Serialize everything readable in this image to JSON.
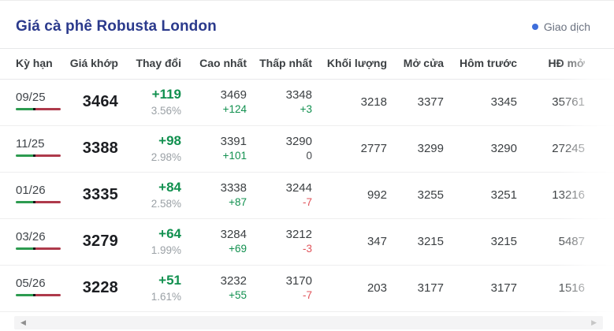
{
  "header": {
    "title": "Giá cà phê Robusta London",
    "legend": {
      "label": "Giao dịch"
    }
  },
  "table": {
    "columns": [
      "Kỳ hạn",
      "Giá khớp",
      "Thay đổi",
      "Cao nhất",
      "Thấp nhất",
      "Khối lượng",
      "Mở cửa",
      "Hôm trước",
      "HĐ mở"
    ],
    "rows": [
      {
        "term": "09/25",
        "match_price": "3464",
        "change": "+119",
        "change_pct": "3.56%",
        "high": "3469",
        "high_delta": "+124",
        "high_delta_dir": "up",
        "low": "3348",
        "low_delta": "+3",
        "low_delta_dir": "up",
        "volume": "3218",
        "open": "3377",
        "prev": "3345",
        "open_interest": "35761"
      },
      {
        "term": "11/25",
        "match_price": "3388",
        "change": "+98",
        "change_pct": "2.98%",
        "high": "3391",
        "high_delta": "+101",
        "high_delta_dir": "up",
        "low": "3290",
        "low_delta": "0",
        "low_delta_dir": "flat",
        "volume": "2777",
        "open": "3299",
        "prev": "3290",
        "open_interest": "27245"
      },
      {
        "term": "01/26",
        "match_price": "3335",
        "change": "+84",
        "change_pct": "2.58%",
        "high": "3338",
        "high_delta": "+87",
        "high_delta_dir": "up",
        "low": "3244",
        "low_delta": "-7",
        "low_delta_dir": "down",
        "volume": "992",
        "open": "3255",
        "prev": "3251",
        "open_interest": "13216"
      },
      {
        "term": "03/26",
        "match_price": "3279",
        "change": "+64",
        "change_pct": "1.99%",
        "high": "3284",
        "high_delta": "+69",
        "high_delta_dir": "up",
        "low": "3212",
        "low_delta": "-3",
        "low_delta_dir": "down",
        "volume": "347",
        "open": "3215",
        "prev": "3215",
        "open_interest": "5487"
      },
      {
        "term": "05/26",
        "match_price": "3228",
        "change": "+51",
        "change_pct": "1.61%",
        "high": "3232",
        "high_delta": "+55",
        "high_delta_dir": "up",
        "low": "3170",
        "low_delta": "-7",
        "low_delta_dir": "down",
        "volume": "203",
        "open": "3177",
        "prev": "3177",
        "open_interest": "1516"
      }
    ]
  },
  "scrollbar": {
    "left_arrow": "◀",
    "right_arrow": "▶"
  },
  "colors": {
    "title": "#2b3a8c",
    "legend_dot": "#3e6edb",
    "up": "#11904f",
    "down": "#e0535a",
    "bar_up": "#2d9b50",
    "bar_down": "#ae3a4b",
    "divider": "#e7e8ea",
    "row_divider": "#eeeeef"
  }
}
